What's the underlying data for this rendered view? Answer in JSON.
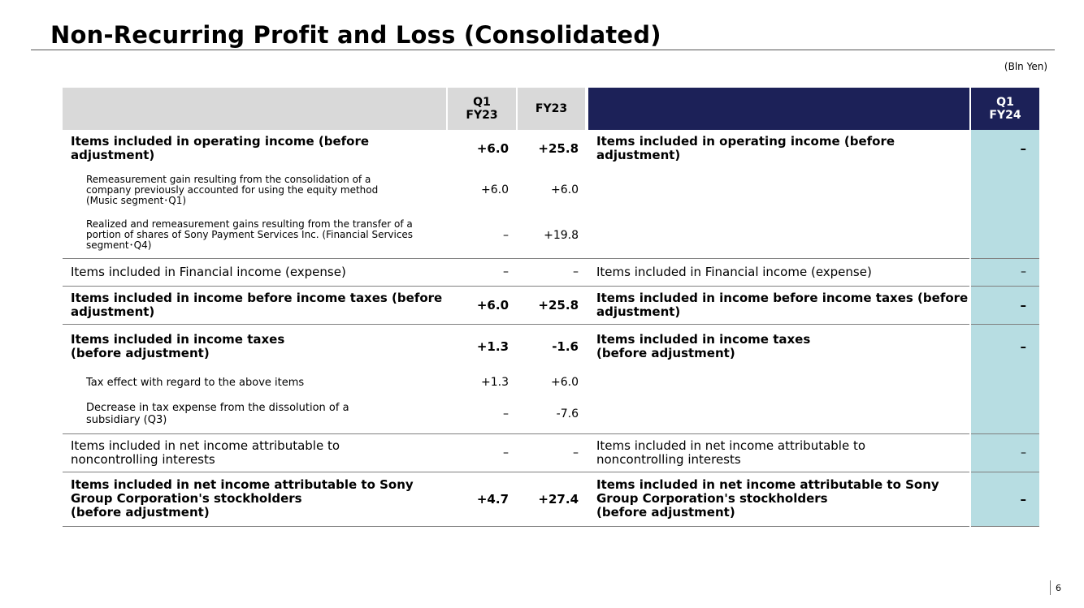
{
  "title": "Non-Recurring Profit and Loss (Consolidated)",
  "unit": "(Bln Yen)",
  "columns": {
    "q1_fy23": "Q1\nFY23",
    "fy23": "FY23",
    "q1_fy24": "Q1\nFY24"
  },
  "rows": [
    {
      "label": "Items included in operating income (before adjustment)",
      "q1_fy23": "+6.0",
      "fy23": "+25.8",
      "right_label": "Items included in operating income (before adjustment)",
      "q1_fy24": "–"
    },
    {
      "label": "Remeasurement gain resulting from the consolidation of a company previously accounted for using the equity method (Music segment･Q1)",
      "q1_fy23": "+6.0",
      "fy23": "+6.0"
    },
    {
      "label": "Realized and remeasurement gains resulting from the transfer of a portion of shares of Sony Payment Services Inc. (Financial Services segment･Q4)",
      "q1_fy23": "–",
      "fy23": "+19.8"
    },
    {
      "label": "Items included in Financial income (expense)",
      "q1_fy23": "–",
      "fy23": "–",
      "right_label": "Items included in Financial income (expense)",
      "q1_fy24": "–"
    },
    {
      "label": "Items included in income before income taxes (before adjustment)",
      "q1_fy23": "+6.0",
      "fy23": "+25.8",
      "right_label": "Items included in income before income taxes (before adjustment)",
      "q1_fy24": "–"
    },
    {
      "label": "Items included in income taxes\n (before adjustment)",
      "q1_fy23": "+1.3",
      "fy23": "-1.6",
      "right_label": "Items included in income taxes\n (before adjustment)",
      "q1_fy24": "–"
    },
    {
      "label": "Tax effect with regard to the above items",
      "q1_fy23": "+1.3",
      "fy23": "+6.0"
    },
    {
      "label": "Decrease in tax expense from the dissolution of a subsidiary (Q3)",
      "q1_fy23": "–",
      "fy23": "-7.6"
    },
    {
      "label": "Items included in net income attributable to noncontrolling interests",
      "q1_fy23": "–",
      "fy23": "–",
      "right_label": "Items included in net income attributable to noncontrolling interests",
      "q1_fy24": "–"
    },
    {
      "label": "Items included in net income attributable to Sony Group Corporation's stockholders\n(before adjustment)",
      "q1_fy23": "+4.7",
      "fy23": "+27.4",
      "right_label": "Items included in net income attributable to Sony Group Corporation's stockholders\n(before adjustment)",
      "q1_fy24": "–"
    }
  ],
  "page_number": "6"
}
